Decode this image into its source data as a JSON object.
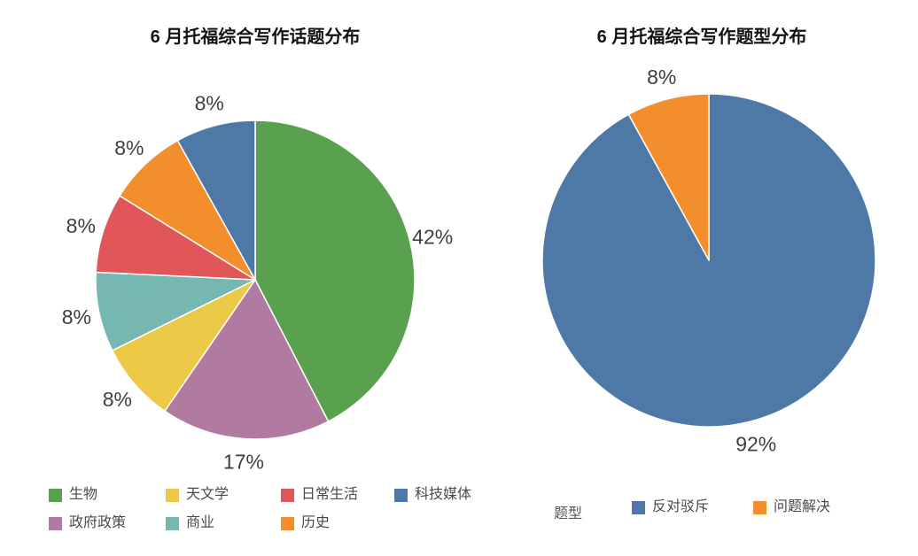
{
  "colors": {
    "green": "#59A14F",
    "yellow": "#EDC948",
    "red": "#E15759",
    "blue": "#4E79A7",
    "purple": "#B07AA1",
    "teal": "#76B7B2",
    "orange": "#F28E2B",
    "label_text": "#3f3f3f",
    "title_text": "#141414",
    "legend_text": "#4a4a4a"
  },
  "chart_data": [
    {
      "type": "pie",
      "title": "6 月托福综合写作话题分布",
      "start_angle": "top, clockwise",
      "slices": [
        {
          "label": "生物",
          "value": 42,
          "display": "42%",
          "color": "#59A14F"
        },
        {
          "label": "政府政策",
          "value": 17,
          "display": "17%",
          "color": "#B07AA1"
        },
        {
          "label": "天文学",
          "value": 8,
          "display": "8%",
          "color": "#EDC948"
        },
        {
          "label": "商业",
          "value": 8,
          "display": "8%",
          "color": "#76B7B2"
        },
        {
          "label": "日常生活",
          "value": 8,
          "display": "8%",
          "color": "#E15759"
        },
        {
          "label": "历史",
          "value": 8,
          "display": "8%",
          "color": "#F28E2B"
        },
        {
          "label": "科技媒体",
          "value": 8,
          "display": "8%",
          "color": "#4E79A7"
        }
      ],
      "legend": [
        {
          "label": "生物",
          "color": "#59A14F"
        },
        {
          "label": "天文学",
          "color": "#EDC948"
        },
        {
          "label": "日常生活",
          "color": "#E15759"
        },
        {
          "label": "科技媒体",
          "color": "#4E79A7"
        },
        {
          "label": "政府政策",
          "color": "#B07AA1"
        },
        {
          "label": "商业",
          "color": "#76B7B2"
        },
        {
          "label": "历史",
          "color": "#F28E2B"
        }
      ]
    },
    {
      "type": "pie",
      "title": "6 月托福综合写作题型分布",
      "legend_title": "题型",
      "start_angle": "top, clockwise",
      "slices": [
        {
          "label": "反对驳斥",
          "value": 92,
          "display": "92%",
          "color": "#4E79A7"
        },
        {
          "label": "问题解决",
          "value": 8,
          "display": "8%",
          "color": "#F28E2B"
        }
      ],
      "legend": [
        {
          "label": "反对驳斥",
          "color": "#4E79A7"
        },
        {
          "label": "问题解决",
          "color": "#F28E2B"
        }
      ]
    }
  ]
}
